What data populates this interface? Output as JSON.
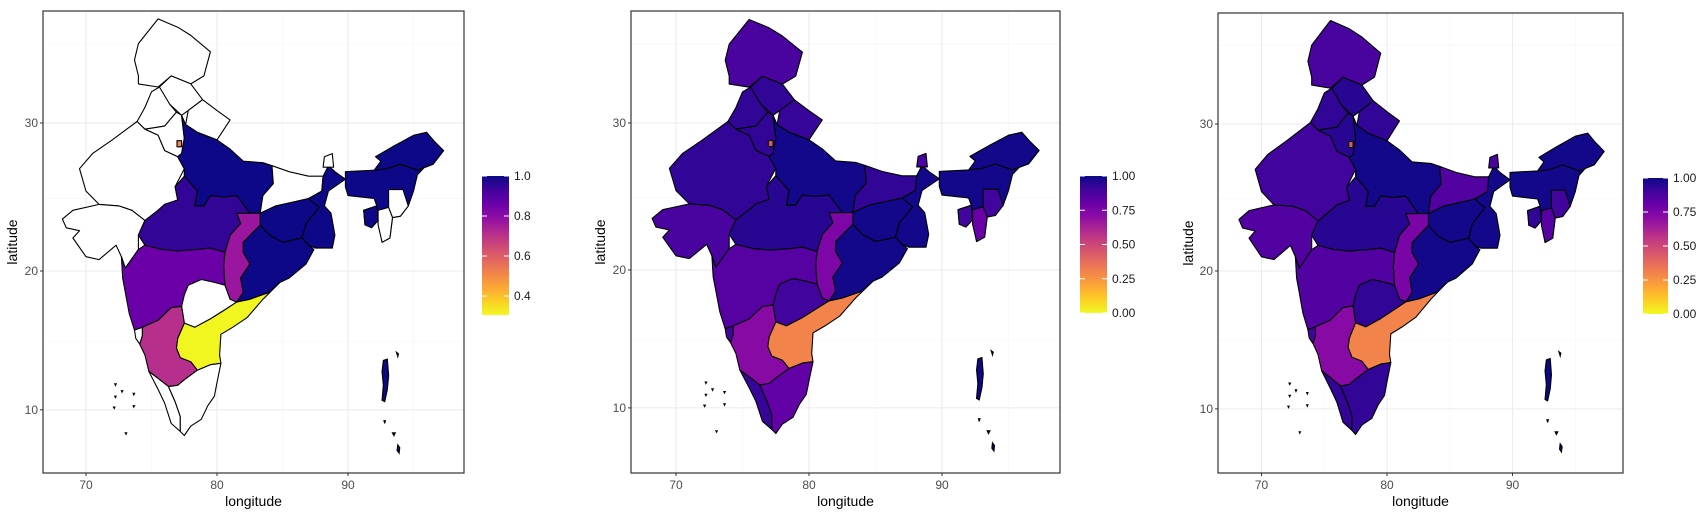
{
  "chart_data": [
    {
      "type": "choropleth",
      "xlabel": "longitude",
      "ylabel": "latitude",
      "x_ticks": [
        "70",
        "80",
        "90"
      ],
      "y_ticks": [
        "10",
        "20",
        "30"
      ],
      "xlim": [
        66.7,
        98.9
      ],
      "ylim": [
        5,
        37.5
      ],
      "grid": true,
      "colormap": "plasma (reversed)",
      "na_color": "#ffffff",
      "legend": {
        "placement": "right",
        "limits": [
          0.305,
          1.0
        ],
        "breaks": [
          "0.4",
          "0.6",
          "0.8",
          "1.0"
        ]
      },
      "regions": {
        "jammu_kashmir": null,
        "himachal_pradesh": null,
        "punjab": null,
        "haryana": null,
        "delhi": 0.51,
        "uttarakhand": null,
        "rajasthan": null,
        "gujarat": null,
        "uttar_pradesh": 1.0,
        "bihar": null,
        "jharkhand": 1.0,
        "west_bengal": 1.0,
        "odisha": 1.0,
        "chhattisgarh": 0.77,
        "madhya_pradesh": 0.95,
        "maharashtra": 0.86,
        "telangana": null,
        "andhra_pradesh": 0.31,
        "karnataka": 0.71,
        "goa": null,
        "kerala": null,
        "tamil_nadu": null,
        "sikkim": null,
        "northeast": 1.0,
        "arunachal_pradesh": 1.0,
        "manipur": null,
        "mizoram": null,
        "tripura": 1.0,
        "andaman_nicobar": null,
        "lakshadweep": null
      }
    },
    {
      "type": "choropleth",
      "xlabel": "longitude",
      "ylabel": "latitude",
      "x_ticks": [
        "70",
        "80",
        "90"
      ],
      "y_ticks": [
        "10",
        "20",
        "30"
      ],
      "xlim": [
        66.7,
        98.9
      ],
      "ylim": [
        5,
        37.5
      ],
      "grid": true,
      "colormap": "plasma (reversed)",
      "na_color": "#ffffff",
      "legend": {
        "placement": "right",
        "limits": [
          0.0,
          1.0
        ],
        "breaks": [
          "0.00",
          "0.25",
          "0.50",
          "0.75",
          "1.00"
        ]
      },
      "regions": {
        "jammu_kashmir": 0.88,
        "himachal_pradesh": 0.93,
        "punjab": 0.93,
        "haryana": 0.93,
        "delhi": 0.45,
        "uttarakhand": 0.92,
        "rajasthan": 0.93,
        "gujarat": 0.88,
        "uttar_pradesh": 0.99,
        "bihar": 0.93,
        "jharkhand": 0.99,
        "west_bengal": 0.99,
        "odisha": 0.99,
        "chhattisgarh": 0.75,
        "madhya_pradesh": 0.95,
        "maharashtra": 0.85,
        "telangana": 0.9,
        "andhra_pradesh": 0.3,
        "karnataka": 0.72,
        "goa": 0.9,
        "kerala": 0.92,
        "tamil_nadu": 0.82,
        "sikkim": 0.88,
        "northeast": 0.99,
        "arunachal_pradesh": 0.99,
        "manipur": 0.9,
        "mizoram": 0.8,
        "tripura": 0.9,
        "andaman_nicobar": null,
        "lakshadweep": null
      }
    },
    {
      "type": "choropleth",
      "xlabel": "longitude",
      "ylabel": "latitude",
      "x_ticks": [
        "70",
        "80",
        "90"
      ],
      "y_ticks": [
        "10",
        "20",
        "30"
      ],
      "xlim": [
        66.6,
        99.0
      ],
      "ylim": [
        5,
        37.5
      ],
      "grid": true,
      "colormap": "plasma (reversed)",
      "na_color": "#ffffff",
      "legend": {
        "placement": "right",
        "limits": [
          0.0,
          1.0
        ],
        "breaks": [
          "0.00",
          "0.25",
          "0.50",
          "0.75",
          "1.00"
        ]
      },
      "regions": {
        "jammu_kashmir": 0.88,
        "himachal_pradesh": 0.95,
        "punjab": 0.93,
        "haryana": 0.95,
        "delhi": 0.45,
        "uttarakhand": 0.93,
        "rajasthan": 0.9,
        "gujarat": 0.86,
        "uttar_pradesh": 0.99,
        "bihar": 0.86,
        "jharkhand": 0.99,
        "west_bengal": 0.99,
        "odisha": 0.99,
        "chhattisgarh": 0.76,
        "madhya_pradesh": 0.95,
        "maharashtra": 0.86,
        "telangana": 0.93,
        "andhra_pradesh": 0.3,
        "karnataka": 0.72,
        "goa": 0.9,
        "kerala": 0.93,
        "tamil_nadu": 0.93,
        "sikkim": 0.88,
        "northeast": 0.99,
        "arunachal_pradesh": 0.99,
        "manipur": 0.9,
        "mizoram": 0.85,
        "tripura": 0.93,
        "andaman_nicobar": null,
        "lakshadweep": null
      }
    }
  ]
}
